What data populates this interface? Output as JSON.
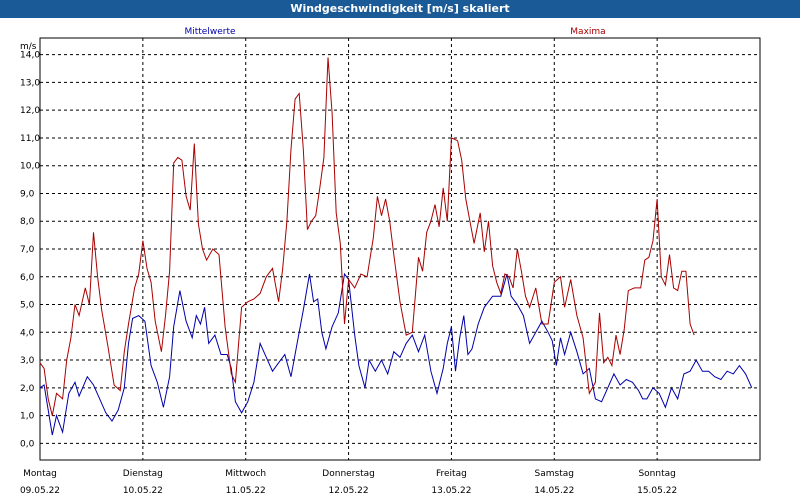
{
  "window": {
    "title": "Windgeschwindigkeit [m/s] skaliert"
  },
  "chart_data": {
    "type": "line",
    "title": "Windgeschwindigkeit [m/s] skaliert",
    "ylabel": "m/s",
    "ylim": [
      -0.6,
      14.6
    ],
    "yticks": [
      0.0,
      1.0,
      2.0,
      3.0,
      4.0,
      5.0,
      6.0,
      7.0,
      8.0,
      9.0,
      10.0,
      11.0,
      12.0,
      13.0,
      14.0
    ],
    "ytick_labels": [
      "0,0",
      "1,0",
      "2,0",
      "3,0",
      "4,0",
      "5,0",
      "6,0",
      "7,0",
      "8,0",
      "9,0",
      "10,0",
      "11,0",
      "12,0",
      "13,0",
      "14,0"
    ],
    "xlim": [
      0,
      7
    ],
    "x_unit": "days since 09.05.22 00:00",
    "days": [
      {
        "name": "Montag",
        "date": "09.05.22"
      },
      {
        "name": "Dienstag",
        "date": "10.05.22"
      },
      {
        "name": "Mittwoch",
        "date": "11.05.22"
      },
      {
        "name": "Donnerstag",
        "date": "12.05.22"
      },
      {
        "name": "Freitag",
        "date": "13.05.22"
      },
      {
        "name": "Samstag",
        "date": "14.05.22"
      },
      {
        "name": "Sonntag",
        "date": "15.05.22"
      }
    ],
    "grid": true,
    "series": [
      {
        "name": "Mittelwerte",
        "color": "#0000aa",
        "points": [
          [
            0.0,
            2.0
          ],
          [
            0.04,
            2.1
          ],
          [
            0.08,
            1.2
          ],
          [
            0.12,
            0.3
          ],
          [
            0.16,
            1.0
          ],
          [
            0.22,
            0.4
          ],
          [
            0.28,
            1.8
          ],
          [
            0.34,
            2.2
          ],
          [
            0.38,
            1.7
          ],
          [
            0.46,
            2.4
          ],
          [
            0.52,
            2.1
          ],
          [
            0.58,
            1.6
          ],
          [
            0.64,
            1.1
          ],
          [
            0.7,
            0.8
          ],
          [
            0.76,
            1.2
          ],
          [
            0.82,
            2.0
          ],
          [
            0.86,
            3.6
          ],
          [
            0.9,
            4.5
          ],
          [
            0.96,
            4.6
          ],
          [
            1.02,
            4.4
          ],
          [
            1.08,
            2.8
          ],
          [
            1.14,
            2.2
          ],
          [
            1.2,
            1.3
          ],
          [
            1.26,
            2.4
          ],
          [
            1.3,
            4.2
          ],
          [
            1.36,
            5.5
          ],
          [
            1.42,
            4.4
          ],
          [
            1.48,
            3.8
          ],
          [
            1.52,
            4.6
          ],
          [
            1.56,
            4.3
          ],
          [
            1.6,
            4.9
          ],
          [
            1.64,
            3.6
          ],
          [
            1.7,
            3.9
          ],
          [
            1.76,
            3.2
          ],
          [
            1.82,
            3.2
          ],
          [
            1.86,
            2.7
          ],
          [
            1.9,
            1.5
          ],
          [
            1.96,
            1.1
          ],
          [
            2.02,
            1.5
          ],
          [
            2.08,
            2.2
          ],
          [
            2.14,
            3.6
          ],
          [
            2.2,
            3.1
          ],
          [
            2.26,
            2.6
          ],
          [
            2.32,
            2.9
          ],
          [
            2.38,
            3.2
          ],
          [
            2.44,
            2.4
          ],
          [
            2.5,
            3.6
          ],
          [
            2.56,
            4.8
          ],
          [
            2.62,
            6.1
          ],
          [
            2.66,
            5.1
          ],
          [
            2.7,
            5.2
          ],
          [
            2.74,
            4.0
          ],
          [
            2.78,
            3.4
          ],
          [
            2.84,
            4.2
          ],
          [
            2.9,
            4.7
          ],
          [
            2.96,
            6.1
          ],
          [
            3.0,
            5.9
          ],
          [
            3.06,
            3.9
          ],
          [
            3.1,
            2.8
          ],
          [
            3.16,
            2.0
          ],
          [
            3.2,
            3.0
          ],
          [
            3.26,
            2.6
          ],
          [
            3.32,
            3.0
          ],
          [
            3.38,
            2.5
          ],
          [
            3.44,
            3.3
          ],
          [
            3.5,
            3.1
          ],
          [
            3.56,
            3.6
          ],
          [
            3.62,
            3.9
          ],
          [
            3.68,
            3.3
          ],
          [
            3.74,
            3.9
          ],
          [
            3.8,
            2.6
          ],
          [
            3.86,
            1.8
          ],
          [
            3.92,
            2.7
          ],
          [
            3.96,
            3.6
          ],
          [
            4.0,
            4.2
          ],
          [
            4.04,
            2.6
          ],
          [
            4.08,
            3.8
          ],
          [
            4.12,
            4.6
          ],
          [
            4.16,
            3.2
          ],
          [
            4.2,
            3.4
          ],
          [
            4.26,
            4.3
          ],
          [
            4.32,
            4.9
          ],
          [
            4.4,
            5.3
          ],
          [
            4.48,
            5.3
          ],
          [
            4.54,
            6.1
          ],
          [
            4.58,
            5.3
          ],
          [
            4.64,
            5.0
          ],
          [
            4.7,
            4.6
          ],
          [
            4.76,
            3.6
          ],
          [
            4.82,
            4.0
          ],
          [
            4.88,
            4.4
          ],
          [
            4.94,
            4.0
          ],
          [
            4.98,
            3.7
          ],
          [
            5.02,
            2.8
          ],
          [
            5.06,
            3.8
          ],
          [
            5.1,
            3.2
          ],
          [
            5.16,
            4.0
          ],
          [
            5.22,
            3.3
          ],
          [
            5.28,
            2.5
          ],
          [
            5.34,
            2.7
          ],
          [
            5.4,
            1.6
          ],
          [
            5.46,
            1.5
          ],
          [
            5.52,
            2.0
          ],
          [
            5.58,
            2.5
          ],
          [
            5.64,
            2.1
          ],
          [
            5.7,
            2.3
          ],
          [
            5.76,
            2.2
          ],
          [
            5.82,
            1.9
          ],
          [
            5.86,
            1.6
          ],
          [
            5.9,
            1.6
          ],
          [
            5.96,
            2.0
          ],
          [
            6.02,
            1.8
          ],
          [
            6.08,
            1.3
          ],
          [
            6.14,
            2.0
          ],
          [
            6.2,
            1.6
          ],
          [
            6.26,
            2.5
          ],
          [
            6.32,
            2.6
          ],
          [
            6.38,
            3.0
          ],
          [
            6.44,
            2.6
          ],
          [
            6.5,
            2.6
          ],
          [
            6.56,
            2.4
          ],
          [
            6.62,
            2.3
          ],
          [
            6.68,
            2.6
          ],
          [
            6.74,
            2.5
          ],
          [
            6.8,
            2.8
          ],
          [
            6.86,
            2.5
          ],
          [
            6.92,
            2.0
          ]
        ]
      },
      {
        "name": "Maxima",
        "color": "#aa0000",
        "points": [
          [
            0.0,
            2.9
          ],
          [
            0.04,
            2.7
          ],
          [
            0.08,
            1.6
          ],
          [
            0.12,
            1.0
          ],
          [
            0.16,
            1.8
          ],
          [
            0.22,
            1.6
          ],
          [
            0.26,
            3.0
          ],
          [
            0.3,
            3.8
          ],
          [
            0.34,
            5.0
          ],
          [
            0.38,
            4.6
          ],
          [
            0.44,
            5.6
          ],
          [
            0.48,
            5.0
          ],
          [
            0.52,
            7.6
          ],
          [
            0.56,
            6.0
          ],
          [
            0.6,
            4.8
          ],
          [
            0.66,
            3.5
          ],
          [
            0.72,
            2.1
          ],
          [
            0.78,
            1.9
          ],
          [
            0.82,
            3.3
          ],
          [
            0.86,
            4.3
          ],
          [
            0.92,
            5.6
          ],
          [
            0.96,
            6.1
          ],
          [
            1.0,
            7.3
          ],
          [
            1.04,
            6.3
          ],
          [
            1.08,
            5.8
          ],
          [
            1.12,
            4.4
          ],
          [
            1.18,
            3.3
          ],
          [
            1.22,
            4.6
          ],
          [
            1.26,
            6.2
          ],
          [
            1.3,
            10.1
          ],
          [
            1.34,
            10.3
          ],
          [
            1.38,
            10.2
          ],
          [
            1.42,
            8.9
          ],
          [
            1.46,
            8.4
          ],
          [
            1.5,
            10.8
          ],
          [
            1.54,
            7.9
          ],
          [
            1.58,
            7.0
          ],
          [
            1.62,
            6.6
          ],
          [
            1.68,
            7.0
          ],
          [
            1.74,
            6.8
          ],
          [
            1.8,
            4.2
          ],
          [
            1.86,
            2.5
          ],
          [
            1.9,
            2.2
          ],
          [
            1.96,
            4.9
          ],
          [
            2.02,
            5.1
          ],
          [
            2.08,
            5.2
          ],
          [
            2.14,
            5.4
          ],
          [
            2.2,
            6.0
          ],
          [
            2.26,
            6.3
          ],
          [
            2.32,
            5.1
          ],
          [
            2.36,
            6.3
          ],
          [
            2.4,
            8.0
          ],
          [
            2.44,
            10.6
          ],
          [
            2.48,
            12.4
          ],
          [
            2.52,
            12.6
          ],
          [
            2.56,
            10.6
          ],
          [
            2.6,
            7.7
          ],
          [
            2.64,
            8.0
          ],
          [
            2.68,
            8.2
          ],
          [
            2.72,
            9.2
          ],
          [
            2.76,
            10.3
          ],
          [
            2.8,
            13.9
          ],
          [
            2.84,
            11.9
          ],
          [
            2.88,
            8.3
          ],
          [
            2.92,
            7.2
          ],
          [
            2.96,
            4.3
          ],
          [
            3.0,
            5.9
          ],
          [
            3.06,
            5.6
          ],
          [
            3.12,
            6.1
          ],
          [
            3.18,
            6.0
          ],
          [
            3.24,
            7.4
          ],
          [
            3.28,
            8.9
          ],
          [
            3.32,
            8.2
          ],
          [
            3.36,
            8.8
          ],
          [
            3.4,
            8.0
          ],
          [
            3.44,
            6.8
          ],
          [
            3.5,
            5.1
          ],
          [
            3.56,
            3.9
          ],
          [
            3.62,
            4.0
          ],
          [
            3.68,
            6.7
          ],
          [
            3.72,
            6.2
          ],
          [
            3.76,
            7.6
          ],
          [
            3.8,
            8.0
          ],
          [
            3.84,
            8.6
          ],
          [
            3.88,
            7.8
          ],
          [
            3.92,
            9.2
          ],
          [
            3.96,
            8.0
          ],
          [
            4.0,
            11.0
          ],
          [
            4.06,
            10.9
          ],
          [
            4.1,
            10.2
          ],
          [
            4.14,
            8.8
          ],
          [
            4.18,
            8.0
          ],
          [
            4.22,
            7.2
          ],
          [
            4.28,
            8.3
          ],
          [
            4.32,
            6.9
          ],
          [
            4.36,
            8.0
          ],
          [
            4.4,
            6.4
          ],
          [
            4.44,
            5.8
          ],
          [
            4.48,
            5.4
          ],
          [
            4.52,
            6.1
          ],
          [
            4.56,
            6.0
          ],
          [
            4.6,
            5.6
          ],
          [
            4.64,
            7.0
          ],
          [
            4.68,
            6.2
          ],
          [
            4.72,
            5.3
          ],
          [
            4.76,
            4.9
          ],
          [
            4.82,
            5.6
          ],
          [
            4.88,
            4.3
          ],
          [
            4.94,
            4.3
          ],
          [
            5.0,
            5.8
          ],
          [
            5.06,
            6.0
          ],
          [
            5.1,
            4.9
          ],
          [
            5.16,
            5.9
          ],
          [
            5.22,
            4.6
          ],
          [
            5.28,
            3.8
          ],
          [
            5.34,
            1.8
          ],
          [
            5.4,
            2.2
          ],
          [
            5.44,
            4.7
          ],
          [
            5.48,
            2.9
          ],
          [
            5.52,
            3.1
          ],
          [
            5.56,
            2.8
          ],
          [
            5.6,
            3.9
          ],
          [
            5.64,
            3.2
          ],
          [
            5.68,
            4.1
          ],
          [
            5.72,
            5.5
          ],
          [
            5.78,
            5.6
          ],
          [
            5.84,
            5.6
          ],
          [
            5.88,
            6.6
          ],
          [
            5.92,
            6.7
          ],
          [
            5.96,
            7.3
          ],
          [
            6.0,
            8.8
          ],
          [
            6.04,
            6.0
          ],
          [
            6.08,
            5.7
          ],
          [
            6.12,
            6.8
          ],
          [
            6.16,
            5.6
          ],
          [
            6.2,
            5.5
          ],
          [
            6.24,
            6.2
          ],
          [
            6.28,
            6.2
          ],
          [
            6.32,
            4.3
          ],
          [
            6.36,
            3.9
          ]
        ]
      }
    ]
  }
}
